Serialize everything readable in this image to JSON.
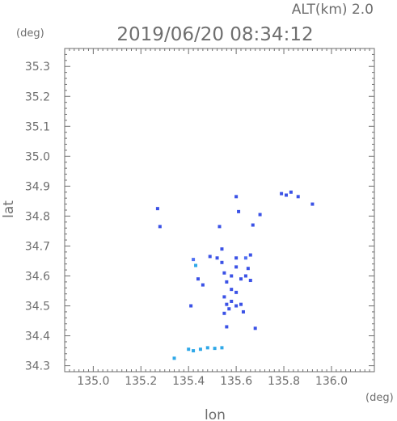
{
  "chart_data": {
    "type": "scatter",
    "title": "2019/06/20 08:34:12",
    "subtitle": "ALT(km) 2.0",
    "xlabel": "lon",
    "ylabel": "lat",
    "x_unit": "(deg)",
    "y_unit": "(deg)",
    "xlim": [
      134.88,
      136.18
    ],
    "ylim": [
      34.28,
      35.36
    ],
    "x_ticks": [
      "135.0",
      "135.2",
      "135.4",
      "135.6",
      "135.8",
      "136.0"
    ],
    "y_ticks": [
      "34.3",
      "34.4",
      "34.5",
      "34.6",
      "34.7",
      "34.8",
      "34.9",
      "35.0",
      "35.1",
      "35.2",
      "35.3"
    ],
    "grid": false,
    "colors": {
      "echo_dark": "#3b52e6",
      "echo_mid": "#4f6ef2",
      "echo_light": "#2fa8e8",
      "axis": "#6e6e6e"
    },
    "points": [
      {
        "lon": 135.27,
        "lat": 34.825,
        "c": "#3b52e6"
      },
      {
        "lon": 135.28,
        "lat": 34.765,
        "c": "#3b52e6"
      },
      {
        "lon": 135.42,
        "lat": 34.655,
        "c": "#4f6ef2"
      },
      {
        "lon": 135.43,
        "lat": 34.635,
        "c": "#2fa8e8"
      },
      {
        "lon": 135.44,
        "lat": 34.59,
        "c": "#3b52e6"
      },
      {
        "lon": 135.46,
        "lat": 34.57,
        "c": "#3b52e6"
      },
      {
        "lon": 135.41,
        "lat": 34.5,
        "c": "#3b52e6"
      },
      {
        "lon": 135.53,
        "lat": 34.765,
        "c": "#3b52e6"
      },
      {
        "lon": 135.54,
        "lat": 34.69,
        "c": "#3b52e6"
      },
      {
        "lon": 135.52,
        "lat": 34.66,
        "c": "#3b52e6"
      },
      {
        "lon": 135.54,
        "lat": 34.645,
        "c": "#3b52e6"
      },
      {
        "lon": 135.55,
        "lat": 34.61,
        "c": "#3b52e6"
      },
      {
        "lon": 135.56,
        "lat": 34.58,
        "c": "#3b52e6"
      },
      {
        "lon": 135.58,
        "lat": 34.6,
        "c": "#3b52e6"
      },
      {
        "lon": 135.6,
        "lat": 34.63,
        "c": "#3b52e6"
      },
      {
        "lon": 135.62,
        "lat": 34.59,
        "c": "#3b52e6"
      },
      {
        "lon": 135.58,
        "lat": 34.555,
        "c": "#3b52e6"
      },
      {
        "lon": 135.55,
        "lat": 34.53,
        "c": "#3b52e6"
      },
      {
        "lon": 135.56,
        "lat": 34.505,
        "c": "#3b52e6"
      },
      {
        "lon": 135.57,
        "lat": 34.49,
        "c": "#3b52e6"
      },
      {
        "lon": 135.55,
        "lat": 34.475,
        "c": "#3b52e6"
      },
      {
        "lon": 135.58,
        "lat": 34.515,
        "c": "#3b52e6"
      },
      {
        "lon": 135.6,
        "lat": 34.5,
        "c": "#3b52e6"
      },
      {
        "lon": 135.56,
        "lat": 34.43,
        "c": "#3b52e6"
      },
      {
        "lon": 135.62,
        "lat": 34.505,
        "c": "#3b52e6"
      },
      {
        "lon": 135.63,
        "lat": 34.48,
        "c": "#3b52e6"
      },
      {
        "lon": 135.65,
        "lat": 34.625,
        "c": "#3b52e6"
      },
      {
        "lon": 135.64,
        "lat": 34.66,
        "c": "#4f6ef2"
      },
      {
        "lon": 135.66,
        "lat": 34.67,
        "c": "#3b52e6"
      },
      {
        "lon": 135.64,
        "lat": 34.6,
        "c": "#3b52e6"
      },
      {
        "lon": 135.6,
        "lat": 34.66,
        "c": "#3b52e6"
      },
      {
        "lon": 135.66,
        "lat": 34.585,
        "c": "#3b52e6"
      },
      {
        "lon": 135.68,
        "lat": 34.425,
        "c": "#3b52e6"
      },
      {
        "lon": 135.61,
        "lat": 34.815,
        "c": "#3b52e6"
      },
      {
        "lon": 135.6,
        "lat": 34.865,
        "c": "#3b52e6"
      },
      {
        "lon": 135.67,
        "lat": 34.77,
        "c": "#3b52e6"
      },
      {
        "lon": 135.7,
        "lat": 34.805,
        "c": "#3b52e6"
      },
      {
        "lon": 135.79,
        "lat": 34.875,
        "c": "#3b52e6"
      },
      {
        "lon": 135.81,
        "lat": 34.87,
        "c": "#3b52e6"
      },
      {
        "lon": 135.83,
        "lat": 34.88,
        "c": "#3b52e6"
      },
      {
        "lon": 135.86,
        "lat": 34.865,
        "c": "#3b52e6"
      },
      {
        "lon": 135.92,
        "lat": 34.84,
        "c": "#3b52e6"
      },
      {
        "lon": 135.49,
        "lat": 34.665,
        "c": "#3b52e6"
      },
      {
        "lon": 135.6,
        "lat": 34.545,
        "c": "#3b52e6"
      },
      {
        "lon": 135.4,
        "lat": 34.355,
        "c": "#2fa8e8"
      },
      {
        "lon": 135.42,
        "lat": 34.35,
        "c": "#2fa8e8"
      },
      {
        "lon": 135.45,
        "lat": 34.355,
        "c": "#2fa8e8"
      },
      {
        "lon": 135.48,
        "lat": 34.36,
        "c": "#2fa8e8"
      },
      {
        "lon": 135.51,
        "lat": 34.358,
        "c": "#2fa8e8"
      },
      {
        "lon": 135.54,
        "lat": 34.36,
        "c": "#2fa8e8"
      },
      {
        "lon": 135.34,
        "lat": 34.325,
        "c": "#2fa8e8"
      }
    ]
  }
}
